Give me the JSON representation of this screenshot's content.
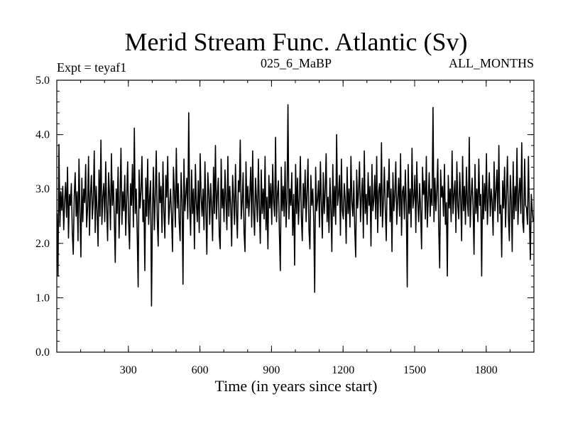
{
  "chart_data": {
    "type": "line",
    "title": "Merid Stream Func. Atlantic (Sv)",
    "subtitle_left": "Expt = teyaf1",
    "subtitle_center": "025_6_MaBP",
    "subtitle_right": "ALL_MONTHS",
    "xlabel": "Time (in years since start)",
    "ylabel": "",
    "xlim": [
      0,
      2000
    ],
    "ylim": [
      0.0,
      5.0
    ],
    "xticks": [
      300,
      600,
      900,
      1200,
      1500,
      1800
    ],
    "xtick_labels": [
      "300",
      "600",
      "900",
      "1200",
      "1500",
      "1800"
    ],
    "xminor_step": 100,
    "yticks": [
      0.0,
      1.0,
      2.0,
      3.0,
      4.0,
      5.0
    ],
    "ytick_labels": [
      "0.0",
      "1.0",
      "2.0",
      "3.0",
      "4.0",
      "5.0"
    ],
    "yminor_step": 0.2,
    "series": [
      {
        "name": "teyaf1",
        "color": "#000000",
        "x_start": 1,
        "x_step": 4,
        "values": [
          2.55,
          1.4,
          3.82,
          2.31,
          2.95,
          2.61,
          3.05,
          2.25,
          2.78,
          3.12,
          2.48,
          3.4,
          2.1,
          2.9,
          2.7,
          3.1,
          2.2,
          1.8,
          2.85,
          3.3,
          2.5,
          2.95,
          2.05,
          3.55,
          2.6,
          1.75,
          3.2,
          2.4,
          3.0,
          2.75,
          3.45,
          2.3,
          2.65,
          3.6,
          2.15,
          2.9,
          3.25,
          2.45,
          2.8,
          3.7,
          2.2,
          3.05,
          2.6,
          1.95,
          3.35,
          2.5,
          3.9,
          2.35,
          2.85,
          3.1,
          2.4,
          3.5,
          2.65,
          2.05,
          3.3,
          2.9,
          2.25,
          3.65,
          2.7,
          3.15,
          2.45,
          1.65,
          3.0,
          2.55,
          3.4,
          2.1,
          2.8,
          3.75,
          2.35,
          2.95,
          2.6,
          3.25,
          2.15,
          2.85,
          3.5,
          2.4,
          1.9,
          3.1,
          2.7,
          3.45,
          2.3,
          4.12,
          2.55,
          3.0,
          2.2,
          1.2,
          3.35,
          2.65,
          2.95,
          3.6,
          2.4,
          2.8,
          1.5,
          3.2,
          2.5,
          3.55,
          2.35,
          2.85,
          3.15,
          0.85,
          2.6,
          3.4,
          2.25,
          2.9,
          3.7,
          2.45,
          1.95,
          3.3,
          2.75,
          3.05,
          2.2,
          3.5,
          2.6,
          2.1,
          3.25,
          2.85,
          3.6,
          2.35,
          2.7,
          3.0,
          2.5,
          1.85,
          3.4,
          2.95,
          2.3,
          3.75,
          2.65,
          3.1,
          2.4,
          2.05,
          3.3,
          2.8,
          1.25,
          3.55,
          2.6,
          2.9,
          3.2,
          2.45,
          4.4,
          2.7,
          2.15,
          3.35,
          2.55,
          3.0,
          1.9,
          3.45,
          2.75,
          2.4,
          3.15,
          2.2,
          3.65,
          2.85,
          2.5,
          3.0,
          2.25,
          3.5,
          2.6,
          1.8,
          3.3,
          2.95,
          2.35,
          3.1,
          2.7,
          2.05,
          3.4,
          2.55,
          3.8,
          2.45,
          2.9,
          3.2,
          2.15,
          1.9,
          3.55,
          2.65,
          3.0,
          2.4,
          3.35,
          2.8,
          2.25,
          3.6,
          2.5,
          3.05,
          2.7,
          1.95,
          3.25,
          2.85,
          2.35,
          3.45,
          2.6,
          2.1,
          3.15,
          2.95,
          3.9,
          2.45,
          2.75,
          3.3,
          2.2,
          1.85,
          3.5,
          2.65,
          3.05,
          2.5,
          2.9,
          3.4,
          2.3,
          3.7,
          2.6,
          2.15,
          3.2,
          2.8,
          2.4,
          3.55,
          2.7,
          2.0,
          3.35,
          2.55,
          3.0,
          2.45,
          3.6,
          2.25,
          2.85,
          1.9,
          3.25,
          2.65,
          3.1,
          2.35,
          3.45,
          2.75,
          2.5,
          3.95,
          2.4,
          2.9,
          3.15,
          2.2,
          1.5,
          3.4,
          2.6,
          3.05,
          2.5,
          3.5,
          2.3,
          2.8,
          4.55,
          2.45,
          3.0,
          2.7,
          3.3,
          2.15,
          2.9,
          1.6,
          3.45,
          2.55,
          3.2,
          2.35,
          2.85,
          3.6,
          2.5,
          2.05,
          3.1,
          2.65,
          3.35,
          2.4,
          2.95,
          3.55,
          2.25,
          1.9,
          3.25,
          2.7,
          3.0,
          2.45,
          1.1,
          3.4,
          2.6,
          2.8,
          3.15,
          2.3,
          3.5,
          2.75,
          2.1,
          3.3,
          2.55,
          2.95,
          3.65,
          2.4,
          2.85,
          2.2,
          3.2,
          2.65,
          1.85,
          3.45,
          2.5,
          3.05,
          2.35,
          4.0,
          2.7,
          2.9,
          3.25,
          2.15,
          3.55,
          2.6,
          2.45,
          3.1,
          2.8,
          2.0,
          3.4,
          2.55,
          3.0,
          2.3,
          3.6,
          2.75,
          2.5,
          3.15,
          2.25,
          1.75,
          3.35,
          2.65,
          2.95,
          3.5,
          2.4,
          2.85,
          3.2,
          2.1,
          3.7,
          2.55,
          2.9,
          2.35,
          3.3,
          2.7,
          3.05,
          1.95,
          3.45,
          2.6,
          2.8,
          3.25,
          2.45,
          3.6,
          2.2,
          2.95,
          3.1,
          2.5,
          3.85,
          2.3,
          2.75,
          3.4,
          2.65,
          2.05,
          3.15,
          2.85,
          3.55,
          2.4,
          3.0,
          1.85,
          3.3,
          2.6,
          2.9,
          3.5,
          2.35,
          2.8,
          3.2,
          2.5,
          3.65,
          2.15,
          2.95,
          3.05,
          2.45,
          3.35,
          2.7,
          1.2,
          3.45,
          2.55,
          3.0,
          2.3,
          3.75,
          2.65,
          2.85,
          3.25,
          2.2,
          3.5,
          2.75,
          2.4,
          3.1,
          2.6,
          1.9,
          3.4,
          2.9,
          3.15,
          2.45,
          3.6,
          2.3,
          2.8,
          3.3,
          2.5,
          3.0,
          2.7,
          4.5,
          2.4,
          3.2,
          2.6,
          2.95,
          3.55,
          2.25,
          1.55,
          3.35,
          2.85,
          3.05,
          2.5,
          3.45,
          2.35,
          2.75,
          1.4,
          3.25,
          2.65,
          3.0,
          2.4,
          3.7,
          2.55,
          2.9,
          3.15,
          2.2,
          3.5,
          2.7,
          2.45,
          3.3,
          2.8,
          2.05,
          3.6,
          2.6,
          3.05,
          2.35,
          3.4,
          2.75,
          2.5,
          3.95,
          2.3,
          2.85,
          3.2,
          2.65,
          1.8,
          3.45,
          2.55,
          3.0,
          2.4,
          3.55,
          2.7,
          2.9,
          1.4,
          3.25,
          2.45,
          3.1,
          2.6,
          3.65,
          2.35,
          2.85,
          3.3,
          2.5,
          3.0,
          2.75,
          2.15,
          3.5,
          2.6,
          2.95,
          3.35,
          2.4,
          3.8,
          2.55,
          2.7,
          1.75,
          3.15,
          2.65,
          3.4,
          2.3,
          2.9,
          3.6,
          2.5,
          2.05,
          3.25,
          2.8,
          1.85,
          3.5,
          2.45,
          3.05,
          2.6,
          3.75,
          2.35,
          2.9,
          3.2,
          2.55,
          3.85,
          2.4,
          2.2,
          3.55,
          2.7,
          2.65,
          2.35,
          3.6,
          2.5,
          1.7,
          2.9,
          2.6,
          2.4
        ]
      }
    ]
  }
}
